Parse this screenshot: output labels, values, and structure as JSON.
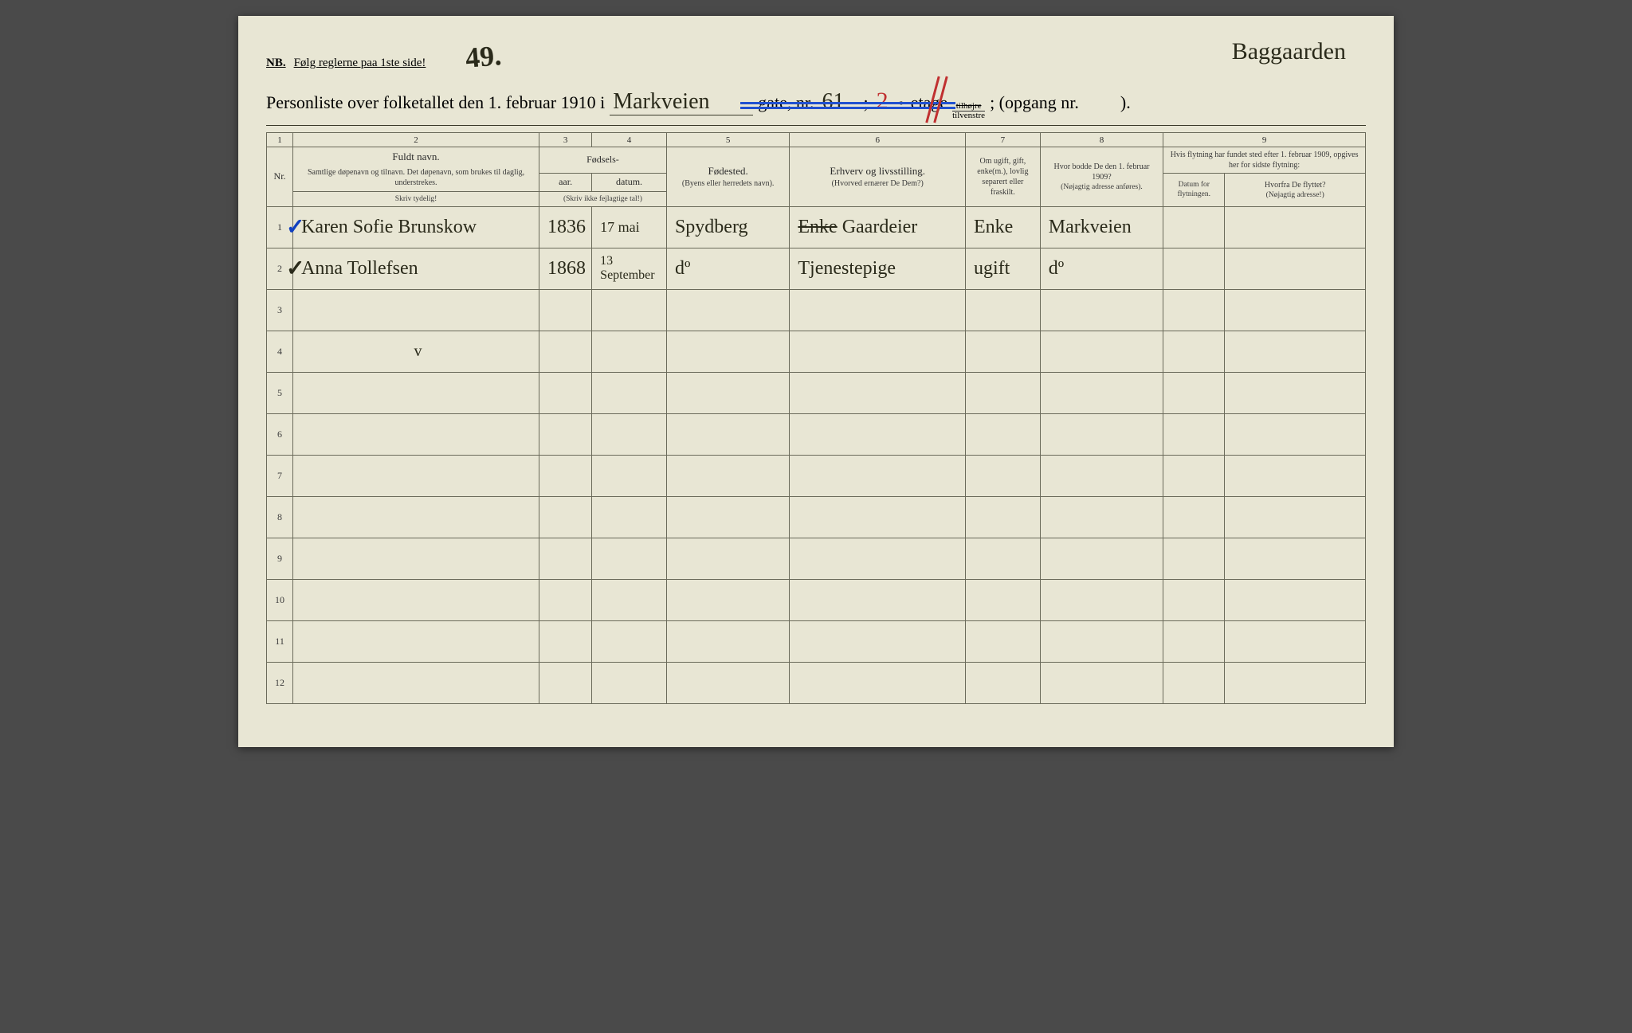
{
  "colors": {
    "paper": "#e8e6d4",
    "ink": "#2a2a1a",
    "rule": "#6a6a5a",
    "blue_pencil": "#2050d0",
    "red_pencil": "#c03030",
    "check_blue": "#1040c0"
  },
  "header": {
    "nb_label": "NB.",
    "nb_text": "Følg reglerne paa 1ste side!",
    "handwritten_mark": "49.",
    "top_annotation": "Baggaarden",
    "title_prefix": "Personliste over folketallet den 1. februar 1910 i",
    "street_handwritten": "Markveien",
    "gate_label": "gate, nr.",
    "gate_nr": "61",
    "etage_hand": "2",
    "etage_suffix": "ᵉ",
    "etage_label": "etage",
    "til_top": "tilhøjre",
    "til_bot": "tilvenstre",
    "opgang_label": "; (opgang nr.",
    "opgang_val": "",
    "opgang_close": ")."
  },
  "columns": {
    "numbers": [
      "1",
      "2",
      "3",
      "4",
      "5",
      "6",
      "7",
      "8",
      "9"
    ],
    "nr_label": "Nr.",
    "c2_main": "Fuldt navn.",
    "c2_sub": "Samtlige døpenavn og tilnavn. Det døpenavn, som brukes til daglig, understrekes.",
    "c2_instr": "Skriv tydelig!",
    "c34_group": "Fødsels-",
    "c3_label": "aar.",
    "c4_label": "datum.",
    "c34_instr": "(Skriv ikke fejlagtige tal!)",
    "c5_main": "Fødested.",
    "c5_sub": "(Byens eller herredets navn).",
    "c6_main": "Erhverv og livsstilling.",
    "c6_sub": "(Hvorved ernærer De Dem?)",
    "c7_main": "Om ugift, gift, enke(m.), lovlig separert eller fraskilt.",
    "c8_main": "Hvor bodde De den 1. februar 1909?",
    "c8_sub": "(Nøjagtig adresse anføres).",
    "c9_main": "Hvis flytning har fundet sted efter 1. februar 1909, opgives her for sidste flytning:",
    "c9a_label": "Datum for flytningen.",
    "c9b_label": "Hvorfra De flyttet?",
    "c9b_sub": "(Nøjagtig adresse!)"
  },
  "rows": [
    {
      "nr": "1",
      "check_color": "blue",
      "name": "Karen Sofie Brunskow",
      "year": "1836",
      "date": "17 mai",
      "birthplace": "Spydberg",
      "occupation_strike": "Enke",
      "occupation": " Gaardeier",
      "status": "Enke",
      "addr1909": "Markveien",
      "move_date": "",
      "move_from": ""
    },
    {
      "nr": "2",
      "check_color": "dark",
      "name": "Anna Tollefsen",
      "year": "1868",
      "date": "13 September",
      "birthplace": "dº",
      "occupation_strike": "",
      "occupation": "Tjenestepige",
      "status": "ugift",
      "addr1909": "dº",
      "move_date": "",
      "move_from": ""
    }
  ],
  "empty_rows": [
    "3",
    "4",
    "5",
    "6",
    "7",
    "8",
    "9",
    "10",
    "11",
    "12"
  ],
  "stray_mark_row4": "v"
}
